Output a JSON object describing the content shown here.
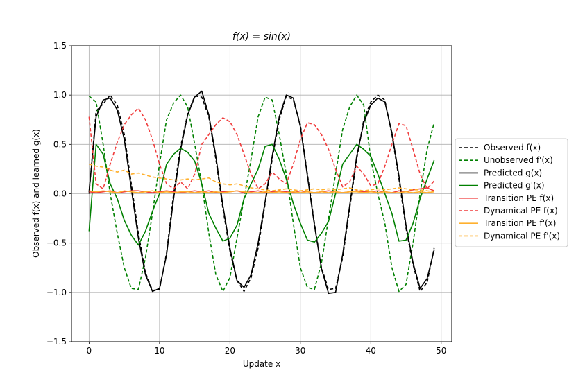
{
  "chart_data": {
    "type": "line",
    "title": "f(x) = sin(x)",
    "xlabel": "Update x",
    "ylabel": "Observed f(x) and learned g(x)",
    "xlim": [
      -2.5,
      51.5
    ],
    "ylim": [
      -1.5,
      1.5
    ],
    "xticks": [
      0,
      10,
      20,
      30,
      40,
      50
    ],
    "yticks": [
      -1.5,
      -1.0,
      -0.5,
      0.0,
      0.5,
      1.0,
      1.5
    ],
    "xtick_labels": [
      "0",
      "10",
      "20",
      "30",
      "40",
      "50"
    ],
    "ytick_labels": [
      "−1.5",
      "−1.0",
      "−0.5",
      "0.0",
      "0.5",
      "1.0",
      "1.5"
    ],
    "grid": true,
    "legend_position": "outside-right",
    "x": [
      0,
      1,
      2,
      3,
      4,
      5,
      6,
      7,
      8,
      9,
      10,
      11,
      12,
      13,
      14,
      15,
      16,
      17,
      18,
      19,
      20,
      21,
      22,
      23,
      24,
      25,
      26,
      27,
      28,
      29,
      30,
      31,
      32,
      33,
      34,
      35,
      36,
      37,
      38,
      39,
      40,
      41,
      42,
      43,
      44,
      45,
      46,
      47,
      48,
      49
    ],
    "series": [
      {
        "name": "Observed f(x)",
        "color": "#000000",
        "dash": "dashed",
        "values": [
          0.0,
          0.84,
          0.91,
          1.0,
          0.9,
          0.6,
          0.1,
          -0.4,
          -0.8,
          -0.98,
          -0.97,
          -0.6,
          0.0,
          0.48,
          0.81,
          0.99,
          0.98,
          0.78,
          0.35,
          -0.15,
          -0.58,
          -0.88,
          -0.99,
          -0.85,
          -0.55,
          -0.1,
          0.35,
          0.75,
          0.99,
          0.95,
          0.7,
          0.2,
          -0.3,
          -0.75,
          -0.97,
          -0.96,
          -0.65,
          -0.15,
          0.35,
          0.75,
          0.93,
          1.0,
          0.95,
          0.6,
          0.15,
          -0.35,
          -0.72,
          -0.99,
          -0.9,
          -0.55
        ]
      },
      {
        "name": "Unobserved f'(x)",
        "color": "#008000",
        "dash": "dashed",
        "values": [
          0.99,
          0.93,
          0.5,
          0.0,
          -0.4,
          -0.75,
          -0.96,
          -0.97,
          -0.65,
          -0.2,
          0.3,
          0.75,
          0.92,
          1.0,
          0.88,
          0.5,
          0.1,
          -0.4,
          -0.82,
          -0.99,
          -0.85,
          -0.45,
          -0.05,
          0.35,
          0.78,
          0.98,
          0.95,
          0.6,
          0.2,
          -0.3,
          -0.75,
          -0.95,
          -0.97,
          -0.7,
          -0.25,
          0.2,
          0.65,
          0.88,
          1.0,
          0.9,
          0.35,
          0.0,
          -0.3,
          -0.75,
          -0.99,
          -0.92,
          -0.5,
          0.0,
          0.45,
          0.72
        ]
      },
      {
        "name": "Predicted g(x)",
        "color": "#000000",
        "dash": "solid",
        "values": [
          0.02,
          0.78,
          0.95,
          0.97,
          0.85,
          0.55,
          0.05,
          -0.45,
          -0.82,
          -0.99,
          -0.96,
          -0.62,
          -0.05,
          0.45,
          0.8,
          0.98,
          1.04,
          0.8,
          0.38,
          -0.12,
          -0.55,
          -0.88,
          -0.95,
          -0.82,
          -0.5,
          -0.08,
          0.38,
          0.78,
          1.0,
          0.97,
          0.68,
          0.18,
          -0.32,
          -0.76,
          -1.01,
          -1.0,
          -0.62,
          -0.12,
          0.38,
          0.72,
          0.9,
          0.97,
          0.93,
          0.62,
          0.18,
          -0.32,
          -0.7,
          -0.96,
          -0.86,
          -0.57
        ]
      },
      {
        "name": "Predicted g'(x)",
        "color": "#008000",
        "dash": "solid",
        "values": [
          -0.38,
          0.5,
          0.4,
          0.1,
          -0.05,
          -0.27,
          -0.42,
          -0.52,
          -0.38,
          -0.18,
          0.0,
          0.3,
          0.4,
          0.46,
          0.42,
          0.33,
          0.1,
          -0.2,
          -0.35,
          -0.48,
          -0.45,
          -0.32,
          -0.05,
          0.1,
          0.25,
          0.48,
          0.5,
          0.35,
          0.15,
          -0.1,
          -0.3,
          -0.47,
          -0.49,
          -0.4,
          -0.28,
          0.0,
          0.3,
          0.4,
          0.5,
          0.45,
          0.38,
          0.2,
          0.0,
          -0.2,
          -0.48,
          -0.47,
          -0.3,
          -0.05,
          0.15,
          0.34
        ]
      },
      {
        "name": "Transition PE f(x)",
        "color": "#f03c3c",
        "dash": "solid",
        "values": [
          0.02,
          0.01,
          0.02,
          0.03,
          0.01,
          0.02,
          0.03,
          0.03,
          0.02,
          0.01,
          0.02,
          0.03,
          0.02,
          0.01,
          0.02,
          0.03,
          0.02,
          0.03,
          0.01,
          0.02,
          0.02,
          0.03,
          0.01,
          0.02,
          0.03,
          0.01,
          0.02,
          0.03,
          0.02,
          0.01,
          0.03,
          0.02,
          0.01,
          0.02,
          0.03,
          0.02,
          0.01,
          0.02,
          0.03,
          0.02,
          0.02,
          0.03,
          0.02,
          0.01,
          0.03,
          0.02,
          0.04,
          0.05,
          0.06,
          0.03
        ]
      },
      {
        "name": "Dynamical PE f(x)",
        "color": "#f03c3c",
        "dash": "dashed",
        "values": [
          0.78,
          0.1,
          0.05,
          0.3,
          0.52,
          0.7,
          0.8,
          0.87,
          0.75,
          0.55,
          0.3,
          0.1,
          0.05,
          0.12,
          0.05,
          0.2,
          0.5,
          0.6,
          0.7,
          0.77,
          0.73,
          0.6,
          0.4,
          0.2,
          0.05,
          0.1,
          0.22,
          0.15,
          0.1,
          0.3,
          0.55,
          0.72,
          0.7,
          0.6,
          0.45,
          0.25,
          0.07,
          0.12,
          0.28,
          0.2,
          0.08,
          0.1,
          0.28,
          0.5,
          0.71,
          0.69,
          0.45,
          0.2,
          0.05,
          0.13
        ]
      },
      {
        "name": "Transition PE f'(x)",
        "color": "#ffb02e",
        "dash": "solid",
        "values": [
          0.03,
          0.02,
          0.03,
          0.02,
          0.01,
          0.03,
          0.02,
          0.01,
          0.02,
          0.03,
          0.01,
          0.02,
          0.01,
          0.02,
          0.02,
          0.01,
          0.02,
          0.01,
          0.02,
          0.01,
          0.02,
          0.03,
          0.02,
          0.01,
          0.01,
          0.02,
          0.01,
          0.02,
          0.01,
          0.02,
          0.01,
          0.02,
          0.01,
          0.02,
          0.01,
          0.02,
          0.01,
          0.02,
          0.02,
          0.01,
          0.02,
          0.01,
          0.02,
          0.01,
          0.01,
          0.02,
          0.01,
          0.02,
          0.01,
          0.02
        ]
      },
      {
        "name": "Dynamical PE f'(x)",
        "color": "#ffb02e",
        "dash": "dashed",
        "values": [
          0.3,
          0.28,
          0.27,
          0.24,
          0.22,
          0.24,
          0.2,
          0.21,
          0.19,
          0.17,
          0.16,
          0.15,
          0.14,
          0.14,
          0.15,
          0.14,
          0.15,
          0.16,
          0.12,
          0.1,
          0.09,
          0.1,
          0.08,
          0.06,
          0.05,
          0.04,
          0.03,
          0.04,
          0.05,
          0.04,
          0.03,
          0.04,
          0.05,
          0.04,
          0.05,
          0.04,
          0.05,
          0.06,
          0.04,
          0.03,
          0.04,
          0.05,
          0.04,
          0.05,
          0.06,
          0.05,
          0.04,
          0.04,
          0.03,
          0.02
        ]
      }
    ]
  }
}
